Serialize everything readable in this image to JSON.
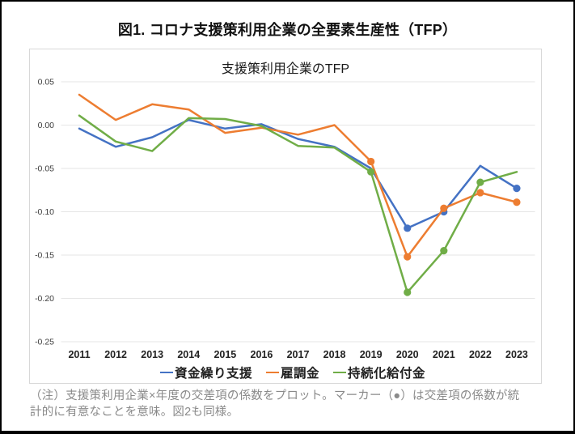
{
  "figure_title": "図1. コロナ支援策利用企業の全要素生産性（TFP）",
  "note_line1": "（注）支援策利用企業×年度の交差項の係数をプロット。マーカー（●）は交差項の係数が統",
  "note_line2": "計的に有意なことを意味。図2も同様。",
  "chart_data": {
    "type": "line",
    "title": "支援策利用企業のTFP",
    "categories": [
      "2011",
      "2012",
      "2013",
      "2014",
      "2015",
      "2016",
      "2017",
      "2018",
      "2019",
      "2020",
      "2021",
      "2022",
      "2023"
    ],
    "xlabel": "",
    "ylabel": "",
    "ylim": [
      -0.25,
      0.05
    ],
    "ytick_labels": [
      "0.05",
      "0.00",
      "-0.05",
      "-0.10",
      "-0.15",
      "-0.20",
      "-0.25"
    ],
    "grid": true,
    "legend_position": "bottom",
    "marker_note": "filled circle marker = coefficient statistically significant",
    "series": [
      {
        "name": "資金繰り支援",
        "color": "#4472C4",
        "values": [
          -0.004,
          -0.025,
          -0.014,
          0.006,
          -0.004,
          0.001,
          -0.016,
          -0.025,
          -0.05,
          -0.119,
          -0.1,
          -0.047,
          -0.073
        ],
        "significant_years": [
          "2020",
          "2021",
          "2023"
        ]
      },
      {
        "name": "雇調金",
        "color": "#ED7D31",
        "values": [
          0.035,
          0.006,
          0.024,
          0.018,
          -0.009,
          -0.003,
          -0.011,
          0.0,
          -0.042,
          -0.152,
          -0.096,
          -0.078,
          -0.089
        ],
        "significant_years": [
          "2019",
          "2020",
          "2021",
          "2022",
          "2023"
        ]
      },
      {
        "name": "持続化給付金",
        "color": "#70AD47",
        "values": [
          0.011,
          -0.019,
          -0.03,
          0.008,
          0.007,
          -0.001,
          -0.024,
          -0.026,
          -0.054,
          -0.193,
          -0.145,
          -0.066,
          -0.054
        ],
        "significant_years": [
          "2019",
          "2020",
          "2021",
          "2022"
        ]
      }
    ]
  },
  "colors": {
    "frame": "#000000",
    "panel_border": "#d8d8d8",
    "grid": "#e4e4e4",
    "note_text": "#8a8a8a"
  }
}
